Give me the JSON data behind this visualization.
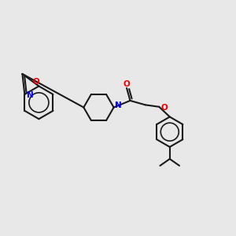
{
  "background_color": "#e8e8e8",
  "line_color": "#1a1a1a",
  "nitrogen_color": "#0000ee",
  "oxygen_color": "#ee0000",
  "line_width": 1.5,
  "figsize": [
    3.0,
    3.0
  ],
  "dpi": 100,
  "xlim": [
    0,
    12
  ],
  "ylim": [
    0,
    12
  ]
}
